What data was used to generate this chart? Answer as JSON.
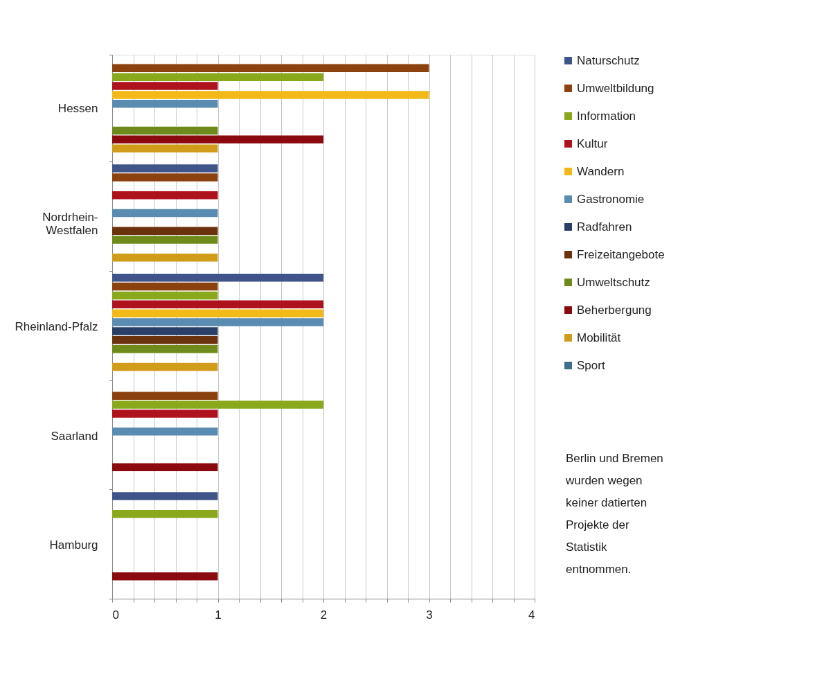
{
  "chart_data": {
    "type": "bar",
    "orientation": "horizontal",
    "categories": [
      "Hessen",
      "Nordrhein-\nWestfalen",
      "Rheinland-Pfalz",
      "Saarland",
      "Hamburg"
    ],
    "series": [
      {
        "name": "Naturschutz",
        "color": "#3f5488",
        "values": [
          null,
          1,
          2,
          null,
          1
        ]
      },
      {
        "name": "Umweltbildung",
        "color": "#8b420e",
        "values": [
          3,
          1,
          1,
          1,
          null
        ]
      },
      {
        "name": "Information",
        "color": "#8aa81c",
        "values": [
          2,
          null,
          1,
          2,
          1
        ]
      },
      {
        "name": "Kultur",
        "color": "#ae121c",
        "values": [
          1,
          1,
          2,
          1,
          null
        ]
      },
      {
        "name": "Wandern",
        "color": "#f3b918",
        "values": [
          3,
          null,
          2,
          null,
          null
        ]
      },
      {
        "name": "Gastronomie",
        "color": "#5a8bb0",
        "values": [
          1,
          1,
          2,
          1,
          null
        ]
      },
      {
        "name": "Radfahren",
        "color": "#2a3f66",
        "values": [
          null,
          null,
          1,
          null,
          null
        ]
      },
      {
        "name": "Freizeitangebote",
        "color": "#6b330d",
        "values": [
          null,
          1,
          1,
          null,
          null
        ]
      },
      {
        "name": "Umweltschutz",
        "color": "#6e8a1a",
        "values": [
          1,
          1,
          1,
          null,
          null
        ]
      },
      {
        "name": "Beherbergung",
        "color": "#8b0a0f",
        "values": [
          2,
          null,
          null,
          1,
          1
        ]
      },
      {
        "name": "Mobilität",
        "color": "#d09c1a",
        "values": [
          1,
          1,
          1,
          null,
          null
        ]
      },
      {
        "name": "Sport",
        "color": "#3f6e8c",
        "values": [
          null,
          null,
          null,
          null,
          null
        ]
      }
    ],
    "xlim": [
      0,
      4
    ],
    "xticks": [
      0,
      {
        "value": 0.2,
        "label": null
      },
      {
        "value": 0.4,
        "label": null
      },
      {
        "value": 0.6,
        "label": null
      },
      {
        "value": 0.8,
        "label": null
      },
      1,
      {
        "value": 1.2,
        "label": null
      },
      {
        "value": 1.4,
        "label": null
      },
      {
        "value": 1.6,
        "label": null
      },
      {
        "value": 1.8,
        "label": null
      },
      2,
      {
        "value": 2.2,
        "label": null
      },
      {
        "value": 2.4,
        "label": null
      },
      {
        "value": 2.6,
        "label": null
      },
      {
        "value": 2.8,
        "label": null
      },
      3,
      {
        "value": 3.2,
        "label": null
      },
      {
        "value": 3.4,
        "label": null
      },
      {
        "value": 3.6,
        "label": null
      },
      {
        "value": 3.8,
        "label": null
      },
      4
    ],
    "grid": "x",
    "legend": "right",
    "annotations": [
      "Berlin und Bremen\nwurden wegen\nkeiner datierten\nProjekte  der\nStatistik\nentnommen."
    ]
  }
}
